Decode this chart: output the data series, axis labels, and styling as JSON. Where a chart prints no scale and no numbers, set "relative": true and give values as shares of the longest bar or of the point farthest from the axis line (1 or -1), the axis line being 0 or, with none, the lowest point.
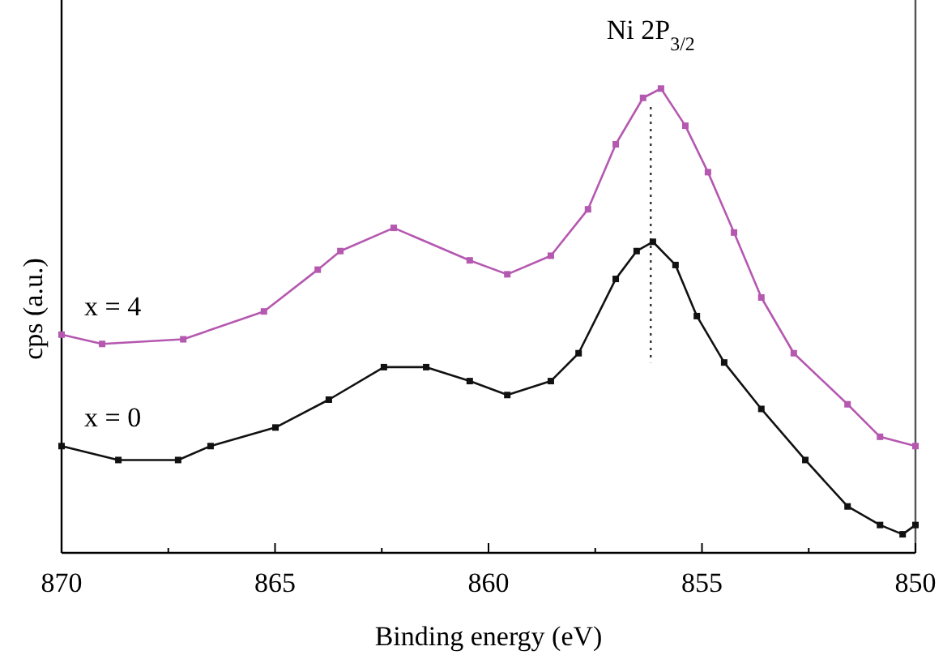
{
  "chart_data": {
    "type": "line",
    "relative": true,
    "xlabel": "Binding energy (eV)",
    "ylabel": "cps (a.u.)",
    "xlim": [
      870,
      850
    ],
    "xticks": [
      870,
      865,
      860,
      855,
      850
    ],
    "marker": "square",
    "series": [
      {
        "name": "x = 4",
        "color": "#b558b0",
        "x": [
          870,
          869.05,
          867.15,
          865.26,
          864.0,
          863.47,
          862.22,
          860.44,
          859.56,
          858.54,
          857.67,
          857.02,
          856.38,
          855.96,
          855.39,
          854.86,
          854.25,
          853.61,
          852.85,
          851.59,
          850.83,
          850
        ],
        "values": [
          0.47,
          0.45,
          0.46,
          0.52,
          0.61,
          0.65,
          0.7,
          0.63,
          0.6,
          0.64,
          0.74,
          0.88,
          0.98,
          1.0,
          0.92,
          0.82,
          0.69,
          0.55,
          0.43,
          0.32,
          0.25,
          0.23
        ]
      },
      {
        "name": "x = 0",
        "color": "#111111",
        "x": [
          870,
          868.67,
          867.27,
          866.51,
          864.99,
          863.74,
          862.45,
          861.46,
          860.44,
          859.56,
          858.54,
          857.89,
          857.02,
          856.53,
          856.15,
          855.62,
          855.12,
          854.48,
          853.61,
          852.58,
          851.59,
          850.83,
          850.3,
          850
        ],
        "values": [
          0.23,
          0.2,
          0.2,
          0.23,
          0.27,
          0.33,
          0.4,
          0.4,
          0.37,
          0.34,
          0.37,
          0.43,
          0.59,
          0.65,
          0.67,
          0.62,
          0.51,
          0.41,
          0.31,
          0.2,
          0.1,
          0.06,
          0.04,
          0.06
        ]
      }
    ],
    "ref_lines": [
      {
        "axis": "x",
        "value": 856.2,
        "label": "Ni 2P$_{3/2}$",
        "line_style": "dotted"
      }
    ]
  }
}
